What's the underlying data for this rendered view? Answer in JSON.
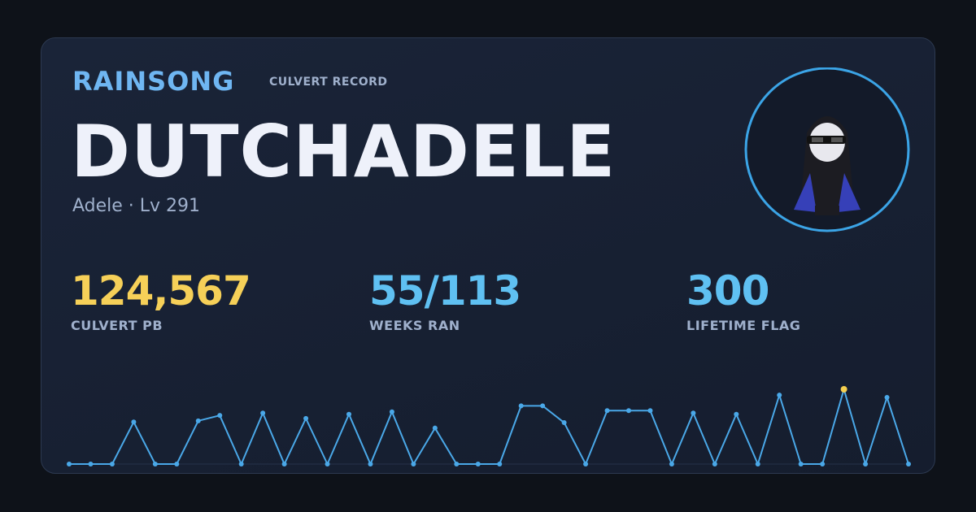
{
  "header": {
    "brand": "RAINSONG",
    "tag": "CULVERT RECORD"
  },
  "player": {
    "name": "DUTCHADELE",
    "details": "Adele · Lv 291"
  },
  "stats": [
    {
      "value": "124,567",
      "label": "CULVERT PB"
    },
    {
      "value": "55/113",
      "label": "WEEKS RAN"
    },
    {
      "value": "300",
      "label": "LIFETIME FLAG"
    }
  ],
  "sparkline": {
    "type": "line",
    "line_color": "#4aa8e8",
    "highlight_color": "#f5cf4f",
    "values": [
      0,
      0,
      0,
      70000,
      0,
      0,
      72000,
      81000,
      0,
      85000,
      0,
      76000,
      0,
      83000,
      0,
      87000,
      0,
      60000,
      0,
      0,
      0,
      97000,
      97000,
      69000,
      0,
      89000,
      89000,
      89000,
      0,
      85000,
      0,
      83000,
      0,
      115000,
      0,
      0,
      124567,
      0,
      111000,
      0
    ]
  }
}
